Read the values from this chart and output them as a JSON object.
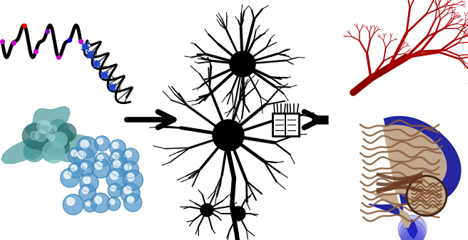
{
  "figsize": [
    6.56,
    3.37
  ],
  "dpi": 100,
  "bg_color": "#ffffff",
  "arrow_color": "#111111",
  "vessel_color": "#aa0000",
  "brain_blue": "#1a1a99",
  "brain_cortex": "#c8b090",
  "brain_dark": "#7a5540"
}
